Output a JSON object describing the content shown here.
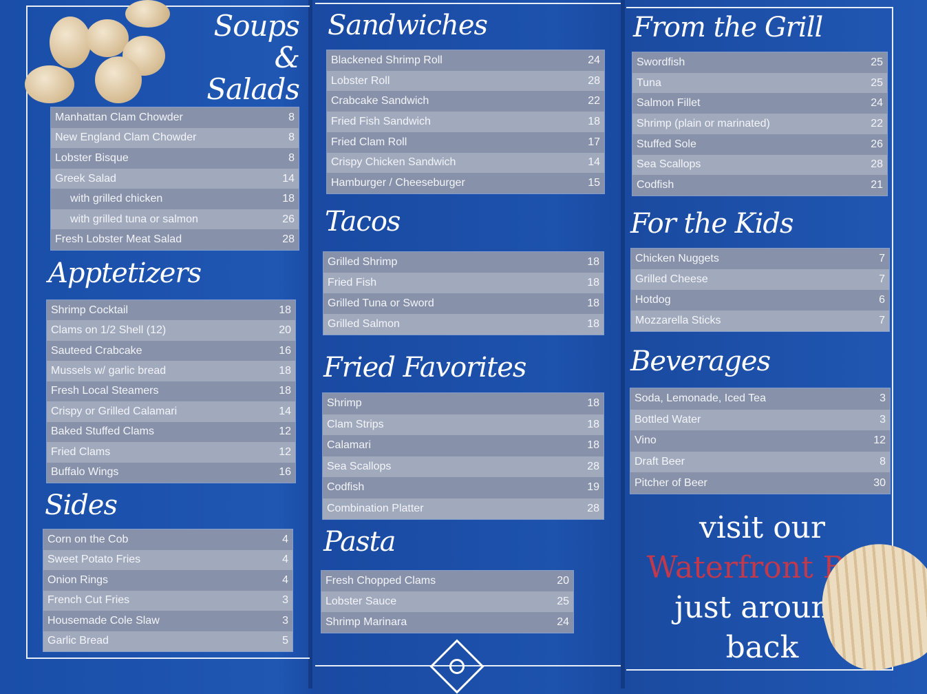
{
  "sections": [
    {
      "id": "soups",
      "title": "Soups & Salads",
      "items": [
        {
          "name": "Manhattan Clam Chowder",
          "price": "8"
        },
        {
          "name": "New England Clam Chowder",
          "price": "8"
        },
        {
          "name": "Lobster Bisque",
          "price": "8"
        },
        {
          "name": "Greek Salad",
          "price": "14"
        },
        {
          "name": "with grilled chicken",
          "price": "18",
          "sub": true
        },
        {
          "name": "with grilled tuna or salmon",
          "price": "26",
          "sub": true
        },
        {
          "name": "Fresh Lobster Meat Salad",
          "price": "28"
        }
      ]
    },
    {
      "id": "apps",
      "title": "Apptetizers",
      "items": [
        {
          "name": "Shrimp Cocktail",
          "price": "18"
        },
        {
          "name": "Clams on 1/2 Shell (12)",
          "price": "20"
        },
        {
          "name": "Sauteed Crabcake",
          "price": "16"
        },
        {
          "name": "Mussels w/ garlic bread",
          "price": "18"
        },
        {
          "name": "Fresh Local Steamers",
          "price": "18"
        },
        {
          "name": "Crispy or Grilled Calamari",
          "price": "14"
        },
        {
          "name": "Baked Stuffed Clams",
          "price": "12"
        },
        {
          "name": "Fried Clams",
          "price": "12"
        },
        {
          "name": "Buffalo Wings",
          "price": "16"
        }
      ]
    },
    {
      "id": "sides",
      "title": "Sides",
      "items": [
        {
          "name": "Corn on the Cob",
          "price": "4"
        },
        {
          "name": "Sweet Potato Fries",
          "price": "4"
        },
        {
          "name": "Onion Rings",
          "price": "4"
        },
        {
          "name": "French Cut Fries",
          "price": "3"
        },
        {
          "name": "Housemade Cole Slaw",
          "price": "3"
        },
        {
          "name": "Garlic Bread",
          "price": "5"
        }
      ]
    },
    {
      "id": "sandwiches",
      "title": "Sandwiches",
      "items": [
        {
          "name": "Blackened Shrimp Roll",
          "price": "24"
        },
        {
          "name": "Lobster Roll",
          "price": "28"
        },
        {
          "name": "Crabcake Sandwich",
          "price": "22"
        },
        {
          "name": "Fried Fish Sandwich",
          "price": "18"
        },
        {
          "name": "Fried Clam Roll",
          "price": "17"
        },
        {
          "name": "Crispy Chicken Sandwich",
          "price": "14"
        },
        {
          "name": "Hamburger / Cheeseburger",
          "price": "15"
        }
      ]
    },
    {
      "id": "tacos",
      "title": "Tacos",
      "items": [
        {
          "name": "Grilled Shrimp",
          "price": "18"
        },
        {
          "name": "Fried Fish",
          "price": "18"
        },
        {
          "name": "Grilled Tuna or Sword",
          "price": "18"
        },
        {
          "name": "Grilled Salmon",
          "price": "18"
        }
      ]
    },
    {
      "id": "fried",
      "title": "Fried Favorites",
      "items": [
        {
          "name": "Shrimp",
          "price": "18"
        },
        {
          "name": "Clam Strips",
          "price": "18"
        },
        {
          "name": "Calamari",
          "price": "18"
        },
        {
          "name": "Sea Scallops",
          "price": "28"
        },
        {
          "name": "Codfish",
          "price": "19"
        },
        {
          "name": "Combination Platter",
          "price": "28"
        }
      ]
    },
    {
      "id": "pasta",
      "title": "Pasta",
      "items": [
        {
          "name": "Fresh Chopped Clams",
          "price": "20"
        },
        {
          "name": "Lobster Sauce",
          "price": "25"
        },
        {
          "name": "Shrimp Marinara",
          "price": "24"
        }
      ]
    },
    {
      "id": "grill",
      "title": "From the Grill",
      "items": [
        {
          "name": "Swordfish",
          "price": "25"
        },
        {
          "name": "Tuna",
          "price": "25"
        },
        {
          "name": "Salmon Fillet",
          "price": "24"
        },
        {
          "name": "Shrimp (plain or marinated)",
          "price": "22"
        },
        {
          "name": "Stuffed Sole",
          "price": "26"
        },
        {
          "name": "Sea Scallops",
          "price": "28"
        },
        {
          "name": "Codfish",
          "price": "21"
        }
      ]
    },
    {
      "id": "kids",
      "title": "For the Kids",
      "items": [
        {
          "name": "Chicken Nuggets",
          "price": "7"
        },
        {
          "name": "Grilled Cheese",
          "price": "7"
        },
        {
          "name": "Hotdog",
          "price": "6"
        },
        {
          "name": "Mozzarella Sticks",
          "price": "7"
        }
      ]
    },
    {
      "id": "bev",
      "title": "Beverages",
      "items": [
        {
          "name": "Soda, Lemonade, Iced Tea",
          "price": "3"
        },
        {
          "name": "Bottled Water",
          "price": "3"
        },
        {
          "name": "Vino",
          "price": "12"
        },
        {
          "name": "Draft Beer",
          "price": "8"
        },
        {
          "name": "Pitcher of Beer",
          "price": "30"
        }
      ]
    }
  ],
  "promo": {
    "line1": "visit our",
    "line2": "Waterfront Bar",
    "line3": "just around",
    "line4": "back"
  },
  "colors": {
    "background": "#1d52ad",
    "row_dark": "#8791aa",
    "row_light": "#a1a9bd",
    "promo_accent": "#c0394d"
  }
}
